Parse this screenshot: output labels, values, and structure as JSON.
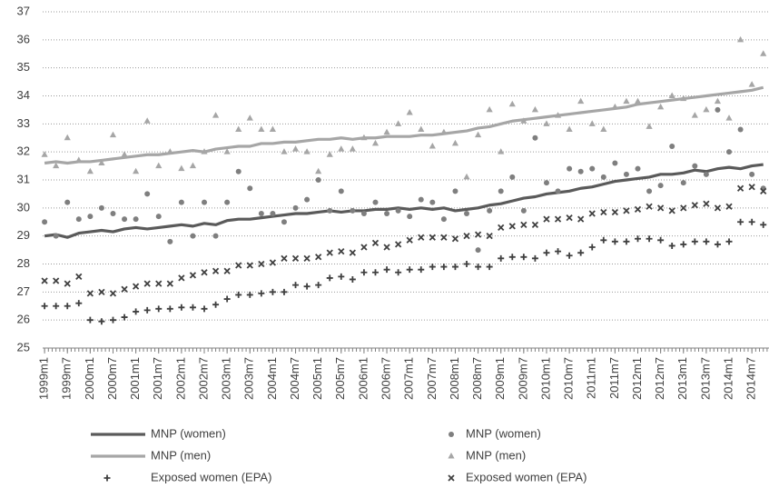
{
  "chart_data": {
    "type": "line",
    "x": [
      "1999m1",
      "1999m4",
      "1999m7",
      "1999m10",
      "2000m1",
      "2000m4",
      "2000m7",
      "2000m10",
      "2001m1",
      "2001m4",
      "2001m7",
      "2001m10",
      "2002m1",
      "2002m4",
      "2002m7",
      "2002m10",
      "2003m1",
      "2003m4",
      "2003m7",
      "2003m10",
      "2004m1",
      "2004m4",
      "2004m7",
      "2004m10",
      "2005m1",
      "2005m4",
      "2005m7",
      "2005m10",
      "2006m1",
      "2006m4",
      "2006m7",
      "2006m10",
      "2007m1",
      "2007m4",
      "2007m7",
      "2007m10",
      "2008m1",
      "2008m4",
      "2008m7",
      "2008m10",
      "2009m1",
      "2009m4",
      "2009m7",
      "2009m10",
      "2010m1",
      "2010m4",
      "2010m7",
      "2010m10",
      "2011m1",
      "2011m4",
      "2011m7",
      "2011m10",
      "2012m1",
      "2012m4",
      "2012m7",
      "2012m10",
      "2013m1",
      "2013m4",
      "2013m7",
      "2013m10",
      "2014m1",
      "2014m4",
      "2014m7",
      "2014m10"
    ],
    "xlim": [
      "1999m1",
      "2014m11"
    ],
    "xticks": [
      "1999m1",
      "1999m7",
      "2000m1",
      "2000m7",
      "2001m1",
      "2001m7",
      "2002m1",
      "2002m7",
      "2003m1",
      "2003m7",
      "2004m1",
      "2004m7",
      "2005m1",
      "2005m7",
      "2006m1",
      "2006m7",
      "2007m1",
      "2007m7",
      "2008m1",
      "2008m7",
      "2009m1",
      "2009m7",
      "2010m1",
      "2010m7",
      "2011m1",
      "2011m7",
      "2012m1",
      "2012m7",
      "2013m1",
      "2013m7",
      "2014m1",
      "2014m7"
    ],
    "ylim": [
      25,
      37
    ],
    "yticks": [
      25,
      26,
      27,
      28,
      29,
      30,
      31,
      32,
      33,
      34,
      35,
      36,
      37
    ],
    "grid": true,
    "series": [
      {
        "name": "MNP (women)",
        "style": "line",
        "color": "#5a5a5a",
        "values": [
          29.0,
          29.05,
          28.95,
          29.1,
          29.15,
          29.2,
          29.15,
          29.25,
          29.3,
          29.25,
          29.3,
          29.35,
          29.4,
          29.35,
          29.45,
          29.4,
          29.55,
          29.6,
          29.6,
          29.65,
          29.7,
          29.75,
          29.8,
          29.8,
          29.85,
          29.9,
          29.85,
          29.9,
          29.9,
          29.95,
          29.95,
          30.0,
          29.95,
          30.0,
          29.95,
          30.0,
          29.9,
          29.95,
          30.0,
          30.1,
          30.15,
          30.25,
          30.35,
          30.4,
          30.5,
          30.55,
          30.6,
          30.7,
          30.75,
          30.85,
          30.95,
          31.0,
          31.05,
          31.1,
          31.2,
          31.2,
          31.25,
          31.35,
          31.3,
          31.4,
          31.45,
          31.4,
          31.5,
          31.55
        ]
      },
      {
        "name": "MNP (men)",
        "style": "line",
        "color": "#a6a6a6",
        "values": [
          31.6,
          31.65,
          31.6,
          31.65,
          31.65,
          31.7,
          31.75,
          31.8,
          31.85,
          31.9,
          31.9,
          31.95,
          32.0,
          32.05,
          32.0,
          32.1,
          32.15,
          32.2,
          32.2,
          32.3,
          32.3,
          32.35,
          32.35,
          32.4,
          32.45,
          32.45,
          32.5,
          32.45,
          32.5,
          32.5,
          32.55,
          32.55,
          32.55,
          32.6,
          32.6,
          32.65,
          32.7,
          32.75,
          32.85,
          32.9,
          33.0,
          33.1,
          33.15,
          33.2,
          33.25,
          33.3,
          33.35,
          33.4,
          33.45,
          33.5,
          33.55,
          33.6,
          33.7,
          33.75,
          33.8,
          33.85,
          33.9,
          33.95,
          34.0,
          34.05,
          34.1,
          34.15,
          34.2,
          34.3
        ]
      },
      {
        "name": "MNP (women)",
        "style": "circle",
        "color": "#7f7f7f",
        "values": [
          29.5,
          29.0,
          30.2,
          29.6,
          29.7,
          30.0,
          29.8,
          29.6,
          29.6,
          30.5,
          29.7,
          28.8,
          30.2,
          29.0,
          30.2,
          29.0,
          30.2,
          31.3,
          30.7,
          29.8,
          29.8,
          29.5,
          30.0,
          30.3,
          31.0,
          29.9,
          30.6,
          29.9,
          29.8,
          30.2,
          29.8,
          29.9,
          29.7,
          30.3,
          30.2,
          29.6,
          30.6,
          29.8,
          28.5,
          29.9,
          30.6,
          31.1,
          29.9,
          32.5,
          30.9,
          30.6,
          31.4,
          31.3,
          31.4,
          31.1,
          31.6,
          31.2,
          31.4,
          30.6,
          30.8,
          32.2,
          30.9,
          31.5,
          31.2,
          33.5,
          32.0,
          32.8,
          31.2,
          30.7
        ]
      },
      {
        "name": "MNP (men)",
        "style": "triangle",
        "color": "#a6a6a6",
        "values": [
          31.9,
          31.5,
          32.5,
          31.7,
          31.3,
          31.6,
          32.6,
          31.9,
          31.3,
          33.1,
          31.5,
          32.0,
          31.4,
          31.5,
          32.0,
          33.3,
          32.0,
          32.8,
          33.2,
          32.8,
          32.8,
          32.0,
          32.1,
          32.0,
          31.3,
          31.9,
          32.1,
          32.1,
          32.5,
          32.3,
          32.7,
          33.0,
          33.4,
          32.8,
          32.2,
          32.7,
          32.3,
          31.1,
          32.6,
          33.5,
          32.0,
          33.7,
          33.1,
          33.5,
          33.0,
          33.3,
          32.8,
          33.8,
          33.0,
          32.8,
          33.6,
          33.8,
          33.8,
          32.9,
          33.6,
          34.0,
          33.9,
          33.3,
          33.5,
          33.8,
          33.2,
          36.0,
          34.4,
          35.5
        ]
      },
      {
        "name": "Exposed women (EPA)",
        "style": "plus",
        "color": "#404040",
        "values": [
          26.5,
          26.5,
          26.5,
          26.6,
          26.0,
          25.95,
          26.0,
          26.1,
          26.3,
          26.35,
          26.4,
          26.4,
          26.45,
          26.45,
          26.4,
          26.55,
          26.75,
          26.9,
          26.9,
          26.95,
          27.0,
          27.0,
          27.25,
          27.2,
          27.25,
          27.5,
          27.55,
          27.45,
          27.7,
          27.7,
          27.8,
          27.7,
          27.8,
          27.8,
          27.9,
          27.9,
          27.9,
          28.0,
          27.9,
          27.9,
          28.2,
          28.25,
          28.25,
          28.2,
          28.4,
          28.45,
          28.3,
          28.4,
          28.6,
          28.85,
          28.8,
          28.8,
          28.9,
          28.9,
          28.85,
          28.65,
          28.7,
          28.8,
          28.8,
          28.7,
          28.8,
          29.5,
          29.5,
          29.4
        ]
      },
      {
        "name": "Exposed women (EPA)",
        "style": "cross",
        "color": "#404040",
        "values": [
          27.4,
          27.4,
          27.3,
          27.55,
          26.95,
          27.0,
          26.95,
          27.1,
          27.2,
          27.3,
          27.3,
          27.3,
          27.5,
          27.6,
          27.7,
          27.75,
          27.75,
          27.95,
          27.95,
          28.0,
          28.05,
          28.2,
          28.2,
          28.2,
          28.25,
          28.4,
          28.45,
          28.4,
          28.6,
          28.75,
          28.6,
          28.7,
          28.85,
          28.95,
          28.95,
          28.95,
          28.9,
          29.0,
          29.05,
          29.0,
          29.3,
          29.35,
          29.4,
          29.4,
          29.6,
          29.6,
          29.65,
          29.6,
          29.8,
          29.85,
          29.85,
          29.9,
          29.95,
          30.05,
          30.0,
          29.9,
          30.0,
          30.1,
          30.15,
          30.0,
          30.05,
          30.7,
          30.75,
          30.6
        ]
      }
    ]
  }
}
